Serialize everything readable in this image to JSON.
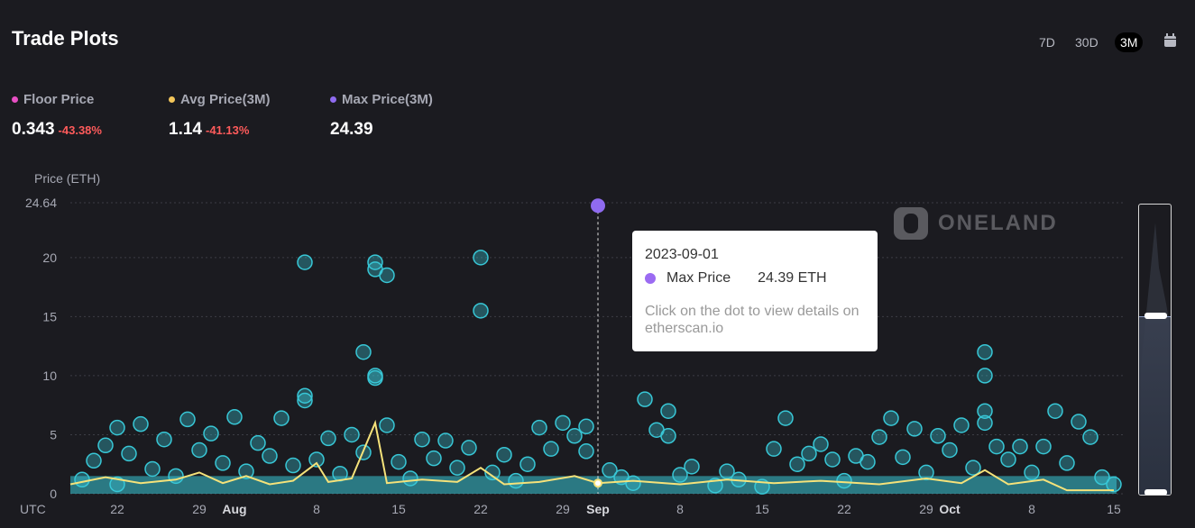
{
  "header": {
    "title": "Trade Plots"
  },
  "range_buttons": [
    {
      "label": "7D",
      "active": false
    },
    {
      "label": "30D",
      "active": false
    },
    {
      "label": "3M",
      "active": true
    }
  ],
  "calendar_icon": "calendar-icon",
  "stats": {
    "floor": {
      "label": "Floor Price",
      "value": "0.343",
      "change": "-43.38%",
      "color": "#e84fc4"
    },
    "avg": {
      "label": "Avg Price(3M)",
      "value": "1.14",
      "change": "-41.13%",
      "color": "#f3c65a"
    },
    "max": {
      "label": "Max Price(3M)",
      "value": "24.39",
      "color": "#8f6bf0"
    }
  },
  "watermark": "ONELAND",
  "tooltip": {
    "date": "2023-09-01",
    "series": "Max Price",
    "value": "24.39 ETH",
    "hint": "Click on the dot to view details on etherscan.io"
  },
  "colors": {
    "scatter": "#38c7d6",
    "avg_line": "#f5e27a",
    "max_dot": "#8f6bf0"
  },
  "chart_data": {
    "type": "scatter",
    "ylabel": "Price (ETH)",
    "yticks": [
      "24.64",
      "20",
      "15",
      "10",
      "5",
      "0"
    ],
    "ylim": [
      0,
      24.64
    ],
    "xlim": [
      "2023-07-18",
      "2023-10-16"
    ],
    "timezone_label": "UTC",
    "xticks": [
      {
        "date": "2023-07-22",
        "label": "22"
      },
      {
        "date": "2023-07-29",
        "label": "29"
      },
      {
        "date": "2023-08-01",
        "label": "Aug"
      },
      {
        "date": "2023-08-08",
        "label": "8"
      },
      {
        "date": "2023-08-15",
        "label": "15"
      },
      {
        "date": "2023-08-22",
        "label": "22"
      },
      {
        "date": "2023-08-29",
        "label": "29"
      },
      {
        "date": "2023-09-01",
        "label": "Sep"
      },
      {
        "date": "2023-09-08",
        "label": "8"
      },
      {
        "date": "2023-09-15",
        "label": "15"
      },
      {
        "date": "2023-09-22",
        "label": "22"
      },
      {
        "date": "2023-09-29",
        "label": "29"
      },
      {
        "date": "2023-10-01",
        "label": "Oct"
      },
      {
        "date": "2023-10-08",
        "label": "8"
      },
      {
        "date": "2023-10-15",
        "label": "15"
      }
    ],
    "series": [
      {
        "type": "scatter",
        "points": [
          [
            "2023-07-19",
            1.2
          ],
          [
            "2023-07-20",
            2.8
          ],
          [
            "2023-07-21",
            4.1
          ],
          [
            "2023-07-22",
            5.6
          ],
          [
            "2023-07-22",
            0.8
          ],
          [
            "2023-07-23",
            3.4
          ],
          [
            "2023-07-24",
            5.9
          ],
          [
            "2023-07-25",
            2.1
          ],
          [
            "2023-07-26",
            4.6
          ],
          [
            "2023-07-27",
            1.5
          ],
          [
            "2023-07-28",
            6.3
          ],
          [
            "2023-07-29",
            3.7
          ],
          [
            "2023-07-30",
            5.1
          ],
          [
            "2023-07-31",
            2.6
          ],
          [
            "2023-08-01",
            6.5
          ],
          [
            "2023-08-02",
            1.9
          ],
          [
            "2023-08-03",
            4.3
          ],
          [
            "2023-08-04",
            3.2
          ],
          [
            "2023-08-05",
            6.4
          ],
          [
            "2023-08-06",
            2.4
          ],
          [
            "2023-08-07",
            19.6
          ],
          [
            "2023-08-07",
            7.9
          ],
          [
            "2023-08-07",
            8.3
          ],
          [
            "2023-08-08",
            2.9
          ],
          [
            "2023-08-09",
            4.7
          ],
          [
            "2023-08-10",
            1.7
          ],
          [
            "2023-08-11",
            5.0
          ],
          [
            "2023-08-12",
            12.0
          ],
          [
            "2023-08-12",
            3.5
          ],
          [
            "2023-08-13",
            19.6
          ],
          [
            "2023-08-13",
            19.0
          ],
          [
            "2023-08-14",
            18.5
          ],
          [
            "2023-08-13",
            10.0
          ],
          [
            "2023-08-13",
            9.8
          ],
          [
            "2023-08-14",
            5.8
          ],
          [
            "2023-08-15",
            2.7
          ],
          [
            "2023-08-16",
            1.3
          ],
          [
            "2023-08-17",
            4.6
          ],
          [
            "2023-08-18",
            3.0
          ],
          [
            "2023-08-19",
            4.5
          ],
          [
            "2023-08-20",
            2.2
          ],
          [
            "2023-08-21",
            3.9
          ],
          [
            "2023-08-22",
            20.0
          ],
          [
            "2023-08-22",
            15.5
          ],
          [
            "2023-08-23",
            1.8
          ],
          [
            "2023-08-24",
            3.3
          ],
          [
            "2023-08-25",
            1.1
          ],
          [
            "2023-08-26",
            2.5
          ],
          [
            "2023-08-27",
            5.6
          ],
          [
            "2023-08-28",
            3.8
          ],
          [
            "2023-08-29",
            6.0
          ],
          [
            "2023-08-30",
            4.9
          ],
          [
            "2023-08-31",
            5.7
          ],
          [
            "2023-08-31",
            3.6
          ],
          [
            "2023-09-02",
            2.0
          ],
          [
            "2023-09-03",
            1.4
          ],
          [
            "2023-09-04",
            0.9
          ],
          [
            "2023-09-05",
            8.0
          ],
          [
            "2023-09-06",
            5.4
          ],
          [
            "2023-09-07",
            7.0
          ],
          [
            "2023-09-07",
            4.9
          ],
          [
            "2023-09-08",
            1.6
          ],
          [
            "2023-09-09",
            2.3
          ],
          [
            "2023-09-11",
            0.7
          ],
          [
            "2023-09-12",
            1.9
          ],
          [
            "2023-09-13",
            1.2
          ],
          [
            "2023-09-15",
            0.6
          ],
          [
            "2023-09-16",
            3.8
          ],
          [
            "2023-09-17",
            6.4
          ],
          [
            "2023-09-18",
            2.5
          ],
          [
            "2023-09-19",
            3.4
          ],
          [
            "2023-09-20",
            4.2
          ],
          [
            "2023-09-21",
            2.9
          ],
          [
            "2023-09-22",
            1.1
          ],
          [
            "2023-09-23",
            3.2
          ],
          [
            "2023-09-24",
            2.7
          ],
          [
            "2023-09-25",
            4.8
          ],
          [
            "2023-09-26",
            6.4
          ],
          [
            "2023-09-27",
            3.1
          ],
          [
            "2023-09-28",
            5.5
          ],
          [
            "2023-09-29",
            1.8
          ],
          [
            "2023-09-30",
            4.9
          ],
          [
            "2023-10-01",
            3.7
          ],
          [
            "2023-10-02",
            5.8
          ],
          [
            "2023-10-03",
            2.2
          ],
          [
            "2023-10-04",
            12.0
          ],
          [
            "2023-10-04",
            10.0
          ],
          [
            "2023-10-04",
            7.0
          ],
          [
            "2023-10-04",
            6.0
          ],
          [
            "2023-10-05",
            4.0
          ],
          [
            "2023-10-06",
            2.9
          ],
          [
            "2023-10-07",
            4.0
          ],
          [
            "2023-10-08",
            1.8
          ],
          [
            "2023-10-09",
            4.0
          ],
          [
            "2023-10-10",
            7.0
          ],
          [
            "2023-10-11",
            2.6
          ],
          [
            "2023-10-12",
            6.1
          ],
          [
            "2023-10-13",
            4.8
          ],
          [
            "2023-10-14",
            1.4
          ],
          [
            "2023-10-15",
            0.8
          ]
        ]
      },
      {
        "type": "line",
        "name": "Avg Price(3M)",
        "points": [
          [
            "2023-07-18",
            0.8
          ],
          [
            "2023-07-21",
            1.4
          ],
          [
            "2023-07-24",
            0.9
          ],
          [
            "2023-07-27",
            1.2
          ],
          [
            "2023-07-29",
            1.8
          ],
          [
            "2023-07-31",
            0.9
          ],
          [
            "2023-08-02",
            1.5
          ],
          [
            "2023-08-04",
            0.8
          ],
          [
            "2023-08-06",
            1.1
          ],
          [
            "2023-08-08",
            2.6
          ],
          [
            "2023-08-09",
            1.0
          ],
          [
            "2023-08-11",
            1.3
          ],
          [
            "2023-08-13",
            6.0
          ],
          [
            "2023-08-14",
            0.9
          ],
          [
            "2023-08-17",
            1.2
          ],
          [
            "2023-08-20",
            1.0
          ],
          [
            "2023-08-22",
            2.2
          ],
          [
            "2023-08-24",
            0.8
          ],
          [
            "2023-08-27",
            1.0
          ],
          [
            "2023-08-30",
            1.5
          ],
          [
            "2023-09-01",
            0.9
          ],
          [
            "2023-09-04",
            1.1
          ],
          [
            "2023-09-08",
            0.8
          ],
          [
            "2023-09-12",
            1.2
          ],
          [
            "2023-09-16",
            0.9
          ],
          [
            "2023-09-20",
            1.1
          ],
          [
            "2023-09-25",
            0.8
          ],
          [
            "2023-09-29",
            1.3
          ],
          [
            "2023-10-02",
            0.9
          ],
          [
            "2023-10-04",
            2.0
          ],
          [
            "2023-10-06",
            0.8
          ],
          [
            "2023-10-09",
            1.2
          ],
          [
            "2023-10-11",
            0.3
          ],
          [
            "2023-10-15",
            0.3
          ]
        ]
      },
      {
        "type": "point",
        "name": "Max Price",
        "points": [
          [
            "2023-09-01",
            24.39
          ]
        ]
      }
    ]
  }
}
